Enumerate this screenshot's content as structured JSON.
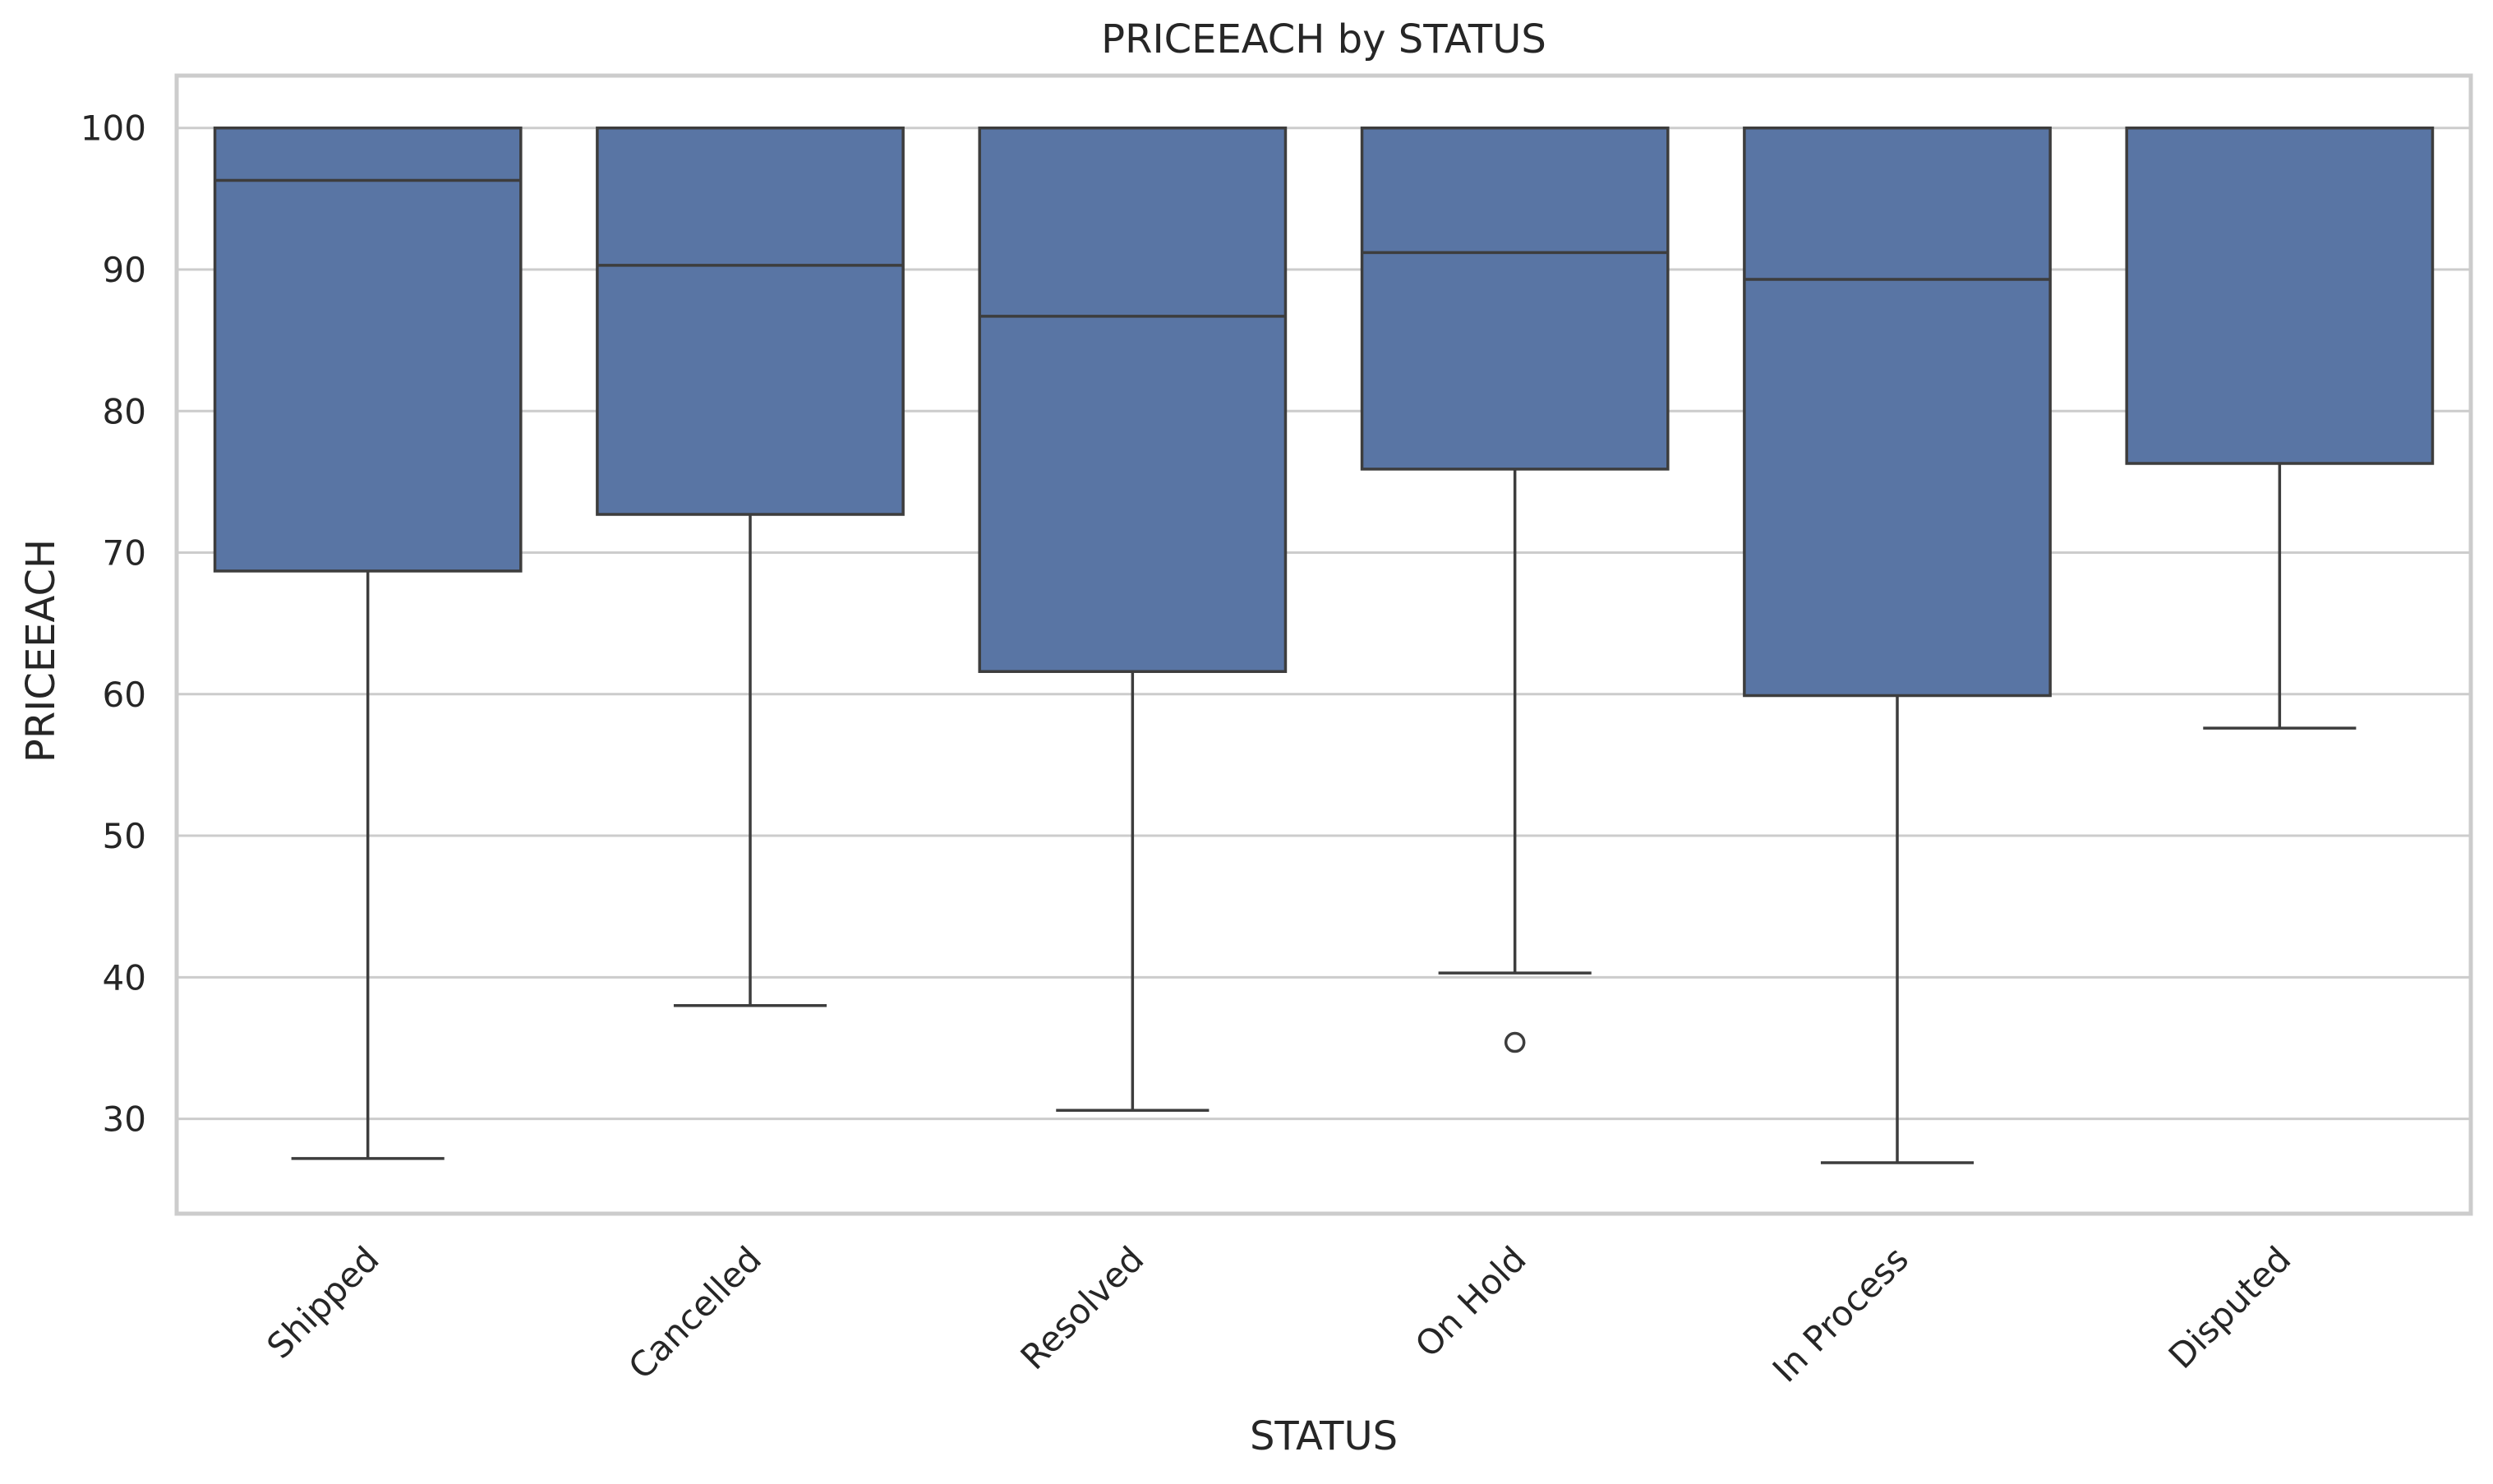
{
  "chart_data": {
    "type": "box",
    "title": "PRICEEACH by STATUS",
    "xlabel": "STATUS",
    "ylabel": "PRICEEACH",
    "ylim": [
      23.3,
      103.7
    ],
    "yticks": [
      30,
      40,
      50,
      60,
      70,
      80,
      90,
      100
    ],
    "grid": "horizontal",
    "box_color": "#5975a4",
    "line_color": "#3d3d3d",
    "categories": [
      "Shipped",
      "Cancelled",
      "Resolved",
      "On Hold",
      "In Process",
      "Disputed"
    ],
    "boxes": [
      {
        "category": "Shipped",
        "whislo": 27.2,
        "q1": 68.7,
        "med": 96.3,
        "q3": 100.0,
        "whishi": 100.0,
        "fliers": []
      },
      {
        "category": "Cancelled",
        "whislo": 38.0,
        "q1": 72.7,
        "med": 90.3,
        "q3": 100.0,
        "whishi": 100.0,
        "fliers": []
      },
      {
        "category": "Resolved",
        "whislo": 30.6,
        "q1": 61.6,
        "med": 86.7,
        "q3": 100.0,
        "whishi": 100.0,
        "fliers": []
      },
      {
        "category": "On Hold",
        "whislo": 40.3,
        "q1": 75.9,
        "med": 91.2,
        "q3": 100.0,
        "whishi": 100.0,
        "fliers": [
          35.4
        ]
      },
      {
        "category": "In Process",
        "whislo": 26.9,
        "q1": 59.9,
        "med": 89.3,
        "q3": 100.0,
        "whishi": 100.0,
        "fliers": []
      },
      {
        "category": "Disputed",
        "whislo": 57.6,
        "q1": 76.3,
        "med": 100.0,
        "q3": 100.0,
        "whishi": 100.0,
        "fliers": []
      }
    ]
  }
}
